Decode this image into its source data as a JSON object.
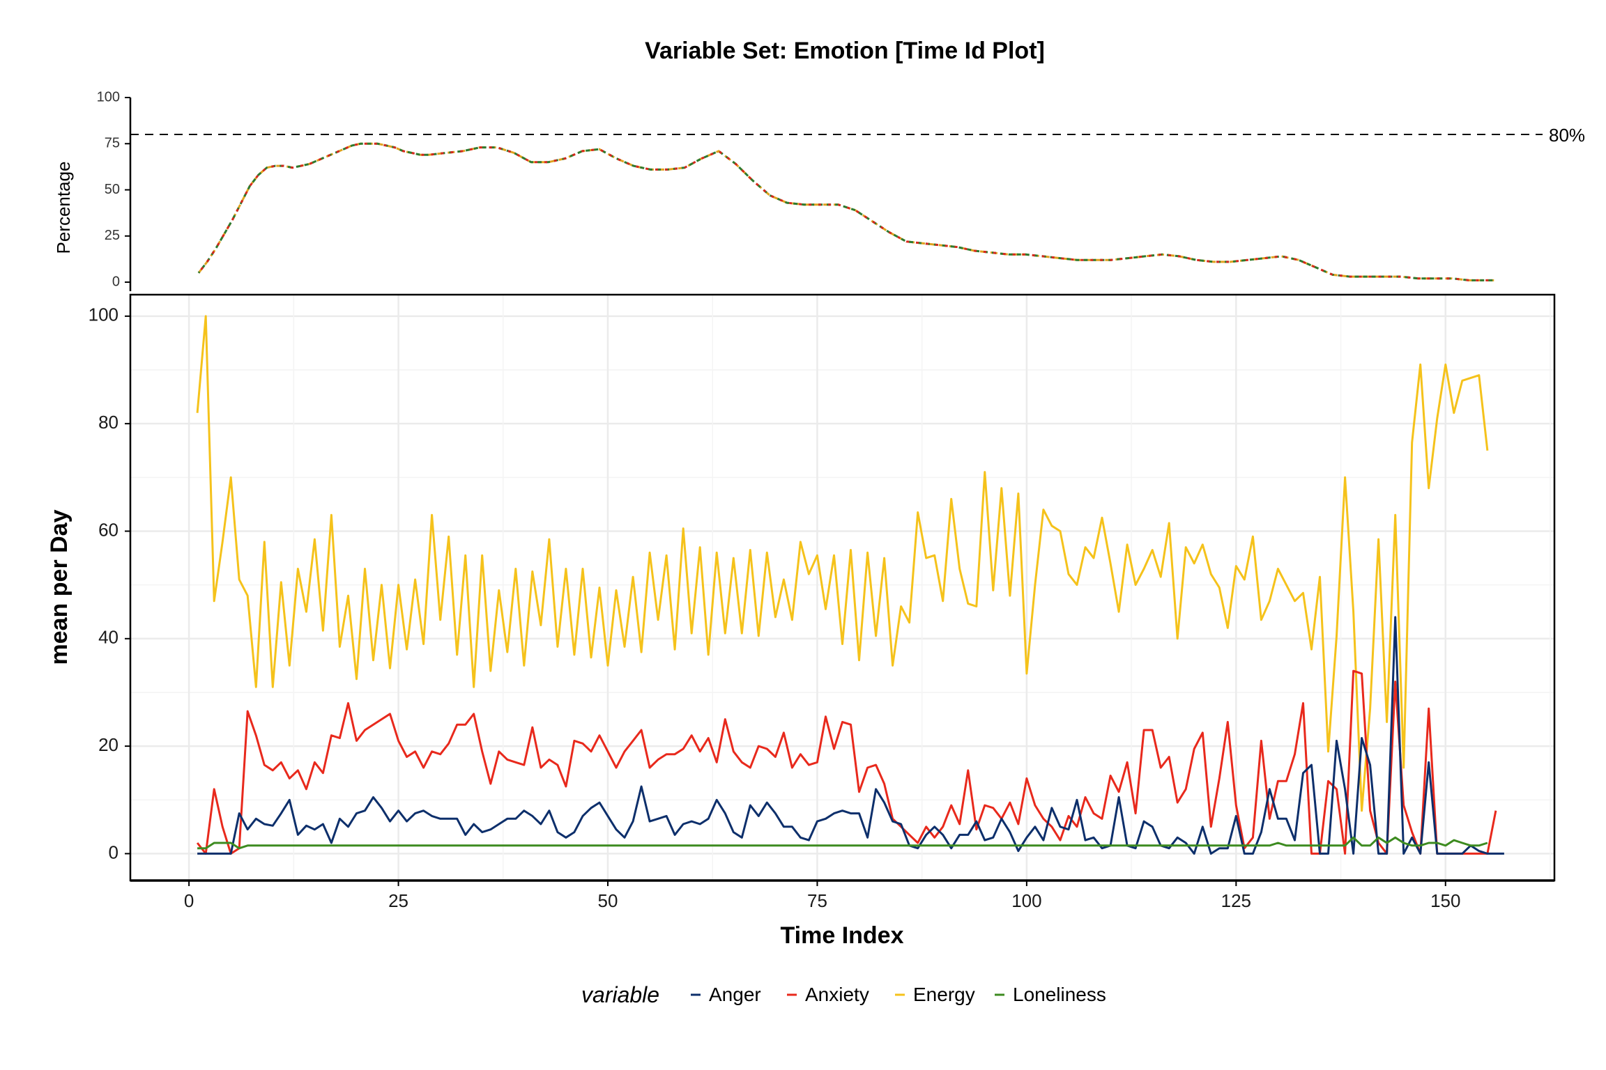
{
  "chart_data": [
    {
      "type": "line",
      "title": "Variable Set: Emotion [Time Id Plot]",
      "panel": "completion",
      "xlabel": "",
      "ylabel": "Percentage",
      "xlim": [
        -5,
        162
      ],
      "ylim": [
        -3,
        100
      ],
      "y_ticks": [
        0,
        25,
        50,
        75,
        100
      ],
      "threshold": {
        "value": 80,
        "label": "80%"
      },
      "colors": [
        "#e0a21f",
        "#2e7a30",
        "#d6281e"
      ],
      "x": [
        3,
        4,
        5,
        6,
        7,
        8,
        9,
        10,
        11,
        12,
        13,
        14,
        15,
        16,
        17,
        18,
        19,
        20,
        21,
        22,
        23,
        24,
        25,
        26,
        27,
        28,
        29,
        30,
        32,
        34,
        36,
        38,
        40,
        42,
        44,
        46,
        48,
        50,
        52,
        54,
        56,
        58,
        60,
        62,
        64,
        66,
        68,
        70,
        72,
        74,
        76,
        78,
        80,
        82,
        84,
        86,
        88,
        90,
        92,
        94,
        96,
        98,
        100,
        102,
        104,
        106,
        108,
        110,
        112,
        114,
        116,
        118,
        120,
        122,
        124,
        126,
        128,
        130,
        132,
        134,
        136,
        138,
        140,
        142,
        144,
        146,
        148,
        150,
        152,
        154,
        155
      ],
      "values": [
        5,
        11,
        18,
        26,
        34,
        43,
        52,
        58,
        62,
        63,
        63,
        62,
        63,
        64,
        66,
        68,
        70,
        72,
        74,
        75,
        75,
        75,
        74,
        73,
        71,
        70,
        69,
        69,
        70,
        71,
        73,
        73,
        70,
        65,
        65,
        67,
        71,
        72,
        67,
        63,
        61,
        61,
        62,
        67,
        71,
        64,
        55,
        47,
        43,
        42,
        42,
        42,
        39,
        33,
        27,
        22,
        21,
        20,
        19,
        17,
        16,
        15,
        15,
        14,
        13,
        12,
        12,
        12,
        13,
        14,
        15,
        14,
        12,
        11,
        11,
        12,
        13,
        14,
        12,
        8,
        4,
        3,
        3,
        3,
        3,
        2,
        2,
        2,
        1,
        1,
        1
      ]
    },
    {
      "type": "line",
      "panel": "main",
      "xlabel": "Time Index",
      "ylabel": "mean per Day",
      "xlim": [
        -7,
        163
      ],
      "ylim": [
        -5,
        104
      ],
      "x_ticks": [
        0,
        25,
        50,
        75,
        100,
        125,
        150
      ],
      "y_ticks": [
        0,
        20,
        40,
        60,
        80,
        100
      ],
      "grid": true,
      "legend": {
        "title": "variable",
        "position": "bottom"
      },
      "x_start": 1,
      "series": [
        {
          "name": "Anger",
          "color": "#0d2f6b",
          "values": [
            0,
            0,
            0,
            0,
            0,
            7.5,
            4.5,
            6.5,
            5.5,
            5.2,
            7.5,
            10,
            3.5,
            5.2,
            4.5,
            5.5,
            2,
            6.5,
            5,
            7.5,
            8,
            10.5,
            8.5,
            6,
            8,
            6,
            7.5,
            8,
            7,
            6.5,
            6.5,
            6.5,
            3.5,
            5.5,
            4,
            4.5,
            5.5,
            6.5,
            6.5,
            8,
            7,
            5.5,
            8,
            4,
            3,
            4,
            7,
            8.5,
            9.5,
            7,
            4.5,
            3,
            6,
            12.5,
            6,
            6.5,
            7,
            3.5,
            5.5,
            6,
            5.5,
            6.5,
            10,
            7.5,
            4,
            3,
            9,
            7,
            9.5,
            7.5,
            5,
            5,
            3,
            2.5,
            6,
            6.5,
            7.5,
            8,
            7.5,
            7.5,
            3,
            12,
            9.5,
            6,
            5.5,
            1.5,
            1,
            3.5,
            5,
            3.5,
            1,
            3.5,
            3.5,
            6,
            2.5,
            3,
            6.5,
            4,
            0.5,
            3,
            5,
            2.5,
            8.5,
            5,
            4.5,
            10,
            2.5,
            3,
            1,
            1.5,
            10.5,
            1.5,
            1,
            6,
            5,
            1.5,
            1,
            3,
            2,
            0,
            5,
            0,
            1,
            1,
            7,
            0,
            0,
            4,
            12,
            6.5,
            6.5,
            2.5,
            15,
            16.5,
            0,
            0,
            21,
            12,
            0,
            21.5,
            16.5,
            0,
            0,
            44,
            0,
            3,
            0,
            17,
            0,
            0,
            0,
            0,
            1.5,
            0.5,
            0,
            0,
            0
          ]
        },
        {
          "name": "Anxiety",
          "color": "#e8291c",
          "values": [
            2,
            0,
            12,
            5,
            0,
            1,
            26.5,
            22,
            16.5,
            15.5,
            17,
            14,
            15.5,
            12,
            17,
            15,
            22,
            21.5,
            28,
            21,
            23,
            24,
            25,
            26,
            21,
            18,
            19,
            16,
            19,
            18.5,
            20.5,
            24,
            24,
            26,
            19,
            13,
            19,
            17.5,
            17,
            16.5,
            23.5,
            16,
            17.5,
            16.5,
            12.5,
            21,
            20.5,
            19,
            22,
            19,
            16,
            19,
            21,
            23,
            16,
            17.5,
            18.5,
            18.5,
            19.5,
            22,
            19,
            21.5,
            17,
            25,
            19,
            17,
            16,
            20,
            19.5,
            18,
            22.5,
            16,
            18.5,
            16.5,
            17,
            25.5,
            19.5,
            24.5,
            24,
            11.5,
            16,
            16.5,
            13,
            6.5,
            5,
            3.5,
            2,
            5,
            3,
            5,
            9,
            5.5,
            15.5,
            4.5,
            9,
            8.5,
            6.5,
            9.5,
            5.5,
            14,
            9,
            6.5,
            5,
            2.5,
            7,
            5,
            10.5,
            7.5,
            6.5,
            14.5,
            11.5,
            17,
            7.5,
            23,
            23,
            16,
            18,
            9.5,
            12,
            19.5,
            22.5,
            5,
            14,
            24.5,
            9,
            1,
            3,
            21,
            6.5,
            13.5,
            13.5,
            18.5,
            28,
            0,
            0,
            13.5,
            12,
            0,
            34,
            33.5,
            8,
            2,
            0,
            32,
            9,
            4,
            0,
            27,
            0,
            0,
            0,
            0,
            0,
            0,
            0,
            8
          ]
        },
        {
          "name": "Energy",
          "color": "#f5c21b",
          "values": [
            82,
            100,
            47,
            58,
            70,
            51,
            48,
            31,
            58,
            31,
            50.5,
            35,
            53,
            45,
            58.5,
            41.5,
            63,
            38.5,
            48,
            32.5,
            53,
            36,
            50,
            34.5,
            50,
            38,
            51,
            39,
            63,
            43.5,
            59,
            37,
            55.5,
            31,
            55.5,
            34,
            49,
            37.5,
            53,
            35,
            52.5,
            42.5,
            58.5,
            38.5,
            53,
            37,
            53,
            36.5,
            49.5,
            35,
            49,
            38.5,
            51.5,
            37.5,
            56,
            43.5,
            55.5,
            38,
            60.5,
            41,
            57,
            37,
            56,
            41,
            55,
            41,
            56.5,
            40.5,
            56,
            44,
            51,
            43.5,
            58,
            52,
            55.5,
            45.5,
            55.5,
            39,
            56.5,
            36,
            56,
            40.5,
            55,
            35,
            46,
            43,
            63.5,
            55,
            55.5,
            47,
            66,
            53,
            46.5,
            46,
            71,
            49,
            68,
            48,
            67,
            33.5,
            50,
            64,
            61,
            60,
            52,
            50,
            57,
            55,
            62.5,
            54,
            45,
            57.5,
            50,
            53,
            56.5,
            51.5,
            61.5,
            40,
            57,
            54,
            57.5,
            52,
            49.5,
            42,
            53.5,
            51,
            59,
            43.5,
            47,
            53,
            50,
            47,
            48.5,
            38,
            51.5,
            19,
            40.5,
            70,
            45,
            8,
            27,
            58.5,
            24.5,
            63,
            16,
            76.5,
            91,
            68,
            81,
            91,
            82,
            88,
            88.5,
            89,
            75
          ]
        },
        {
          "name": "Loneliness",
          "color": "#3d8b20",
          "values": [
            1,
            1,
            2,
            2,
            2,
            1,
            1.5,
            1.5,
            1.5,
            1.5,
            1.5,
            1.5,
            1.5,
            1.5,
            1.5,
            1.5,
            1.5,
            1.5,
            1.5,
            1.5,
            1.5,
            1.5,
            1.5,
            1.5,
            1.5,
            1.5,
            1.5,
            1.5,
            1.5,
            1.5,
            1.5,
            1.5,
            1.5,
            1.5,
            1.5,
            1.5,
            1.5,
            1.5,
            1.5,
            1.5,
            1.5,
            1.5,
            1.5,
            1.5,
            1.5,
            1.5,
            1.5,
            1.5,
            1.5,
            1.5,
            1.5,
            1.5,
            1.5,
            1.5,
            1.5,
            1.5,
            1.5,
            1.5,
            1.5,
            1.5,
            1.5,
            1.5,
            1.5,
            1.5,
            1.5,
            1.5,
            1.5,
            1.5,
            1.5,
            1.5,
            1.5,
            1.5,
            1.5,
            1.5,
            1.5,
            1.5,
            1.5,
            1.5,
            1.5,
            1.5,
            1.5,
            1.5,
            1.5,
            1.5,
            1.5,
            1.5,
            1.5,
            1.5,
            1.5,
            1.5,
            1.5,
            1.5,
            1.5,
            1.5,
            1.5,
            1.5,
            1.5,
            1.5,
            1.5,
            1.5,
            1.5,
            1.5,
            1.5,
            1.5,
            1.5,
            1.5,
            1.5,
            1.5,
            1.5,
            1.5,
            1.5,
            1.5,
            1.5,
            1.5,
            1.5,
            1.5,
            1.5,
            1.5,
            1.5,
            1.5,
            1.5,
            1.5,
            1.5,
            1.5,
            1.5,
            1.5,
            1.5,
            1.5,
            1.5,
            2,
            1.5,
            1.5,
            1.5,
            1.5,
            1.5,
            1.5,
            1.5,
            1.5,
            3,
            1.5,
            1.5,
            3,
            2,
            3,
            2,
            1.5,
            1.5,
            2,
            2,
            1.5,
            2.5,
            2,
            1.5,
            1.5,
            2
          ]
        }
      ]
    }
  ]
}
